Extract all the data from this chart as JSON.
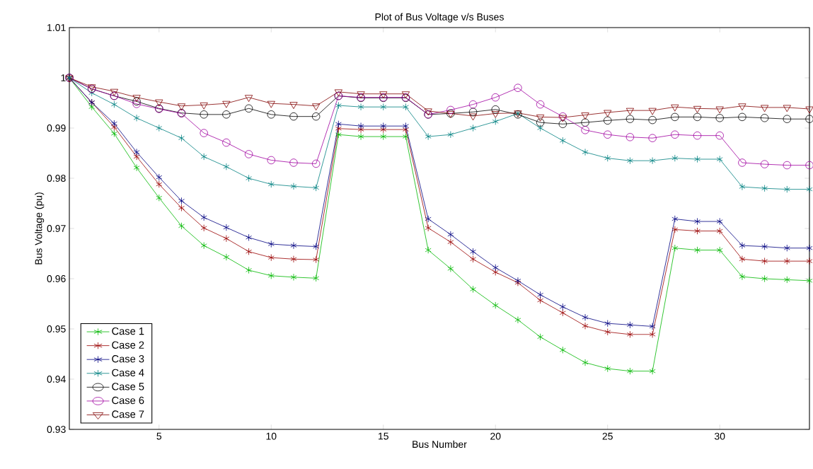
{
  "chart_data": {
    "type": "line",
    "title": "Plot of Bus Voltage v/s Buses",
    "xlabel": "Bus Number",
    "ylabel": "Bus Voltage (pu)",
    "x": [
      1,
      2,
      3,
      4,
      5,
      6,
      7,
      8,
      9,
      10,
      11,
      12,
      13,
      14,
      15,
      16,
      17,
      18,
      19,
      20,
      21,
      22,
      23,
      24,
      25,
      26,
      27,
      28,
      29,
      30,
      31,
      32,
      33,
      34
    ],
    "xlim": [
      1,
      34
    ],
    "xticks": [
      5,
      10,
      15,
      20,
      25,
      30
    ],
    "ylim": [
      0.93,
      1.01
    ],
    "yticks": [
      0.93,
      0.94,
      0.95,
      0.96,
      0.97,
      0.98,
      0.99,
      1,
      1.01
    ],
    "grid": false,
    "legend": "bottom left",
    "line_style": "solid",
    "series": [
      {
        "name": "Case 1",
        "color": "#00b800",
        "marker": "cross",
        "values": [
          1.0,
          0.9942,
          0.9889,
          0.9821,
          0.9761,
          0.9705,
          0.9666,
          0.9643,
          0.9617,
          0.9606,
          0.9603,
          0.9601,
          0.9887,
          0.9883,
          0.9883,
          0.9883,
          0.9657,
          0.962,
          0.9579,
          0.9547,
          0.9518,
          0.9484,
          0.9458,
          0.9433,
          0.9421,
          0.9416,
          0.9416,
          0.9661,
          0.9657,
          0.9657,
          0.9604,
          0.96,
          0.9598,
          0.9596
        ]
      },
      {
        "name": "Case 2",
        "color": "#990000",
        "marker": "cross",
        "values": [
          1.0,
          0.9951,
          0.9902,
          0.9843,
          0.9788,
          0.9741,
          0.9701,
          0.968,
          0.9654,
          0.9642,
          0.9639,
          0.9638,
          0.9899,
          0.9897,
          0.9897,
          0.9897,
          0.9701,
          0.9673,
          0.9639,
          0.9613,
          0.9592,
          0.9557,
          0.9532,
          0.9506,
          0.9494,
          0.9489,
          0.9489,
          0.9698,
          0.9695,
          0.9695,
          0.9639,
          0.9635,
          0.9635,
          0.9635
        ]
      },
      {
        "name": "Case 3",
        "color": "#000080",
        "marker": "cross",
        "values": [
          1.0,
          0.9951,
          0.9909,
          0.9852,
          0.9802,
          0.9755,
          0.9722,
          0.9702,
          0.9682,
          0.9669,
          0.9666,
          0.9664,
          0.9908,
          0.9904,
          0.9904,
          0.9904,
          0.9719,
          0.9688,
          0.9654,
          0.9622,
          0.9596,
          0.9568,
          0.9544,
          0.9523,
          0.9511,
          0.9508,
          0.9505,
          0.9719,
          0.9714,
          0.9714,
          0.9666,
          0.9664,
          0.9661,
          0.9661
        ]
      },
      {
        "name": "Case 4",
        "color": "#008080",
        "marker": "cross",
        "values": [
          1.0,
          0.997,
          0.9947,
          0.992,
          0.99,
          0.988,
          0.9843,
          0.9823,
          0.98,
          0.9788,
          0.9784,
          0.9781,
          0.9945,
          0.9942,
          0.9942,
          0.9942,
          0.9883,
          0.9887,
          0.99,
          0.9913,
          0.9929,
          0.99,
          0.9875,
          0.9852,
          0.984,
          0.9835,
          0.9835,
          0.984,
          0.9838,
          0.9838,
          0.9783,
          0.978,
          0.9778,
          0.9778
        ]
      },
      {
        "name": "Case 5",
        "color": "#000000",
        "marker": "circle",
        "values": [
          1.0,
          0.9978,
          0.9964,
          0.9953,
          0.9939,
          0.993,
          0.9927,
          0.9927,
          0.9939,
          0.9927,
          0.9923,
          0.9923,
          0.9964,
          0.996,
          0.996,
          0.996,
          0.9927,
          0.9929,
          0.9932,
          0.9937,
          0.9927,
          0.9911,
          0.9908,
          0.9911,
          0.9915,
          0.9918,
          0.9916,
          0.9922,
          0.9922,
          0.992,
          0.9922,
          0.992,
          0.9918,
          0.9918
        ]
      },
      {
        "name": "Case 6",
        "color": "#a000a0",
        "marker": "circle",
        "values": [
          1.0,
          0.9978,
          0.9964,
          0.9948,
          0.9938,
          0.9929,
          0.989,
          0.9871,
          0.9848,
          0.9836,
          0.9831,
          0.9829,
          0.9964,
          0.9961,
          0.9961,
          0.9961,
          0.9927,
          0.9936,
          0.9947,
          0.9961,
          0.998,
          0.9947,
          0.9923,
          0.9896,
          0.9887,
          0.9882,
          0.988,
          0.9887,
          0.9885,
          0.9885,
          0.9831,
          0.9828,
          0.9826,
          0.9826
        ]
      },
      {
        "name": "Case 7",
        "color": "#800000",
        "marker": "triangle",
        "values": [
          1.0,
          0.9982,
          0.9973,
          0.9961,
          0.9952,
          0.9944,
          0.9946,
          0.9949,
          0.9961,
          0.9949,
          0.9947,
          0.9944,
          0.9972,
          0.9968,
          0.9968,
          0.9968,
          0.9934,
          0.9929,
          0.9924,
          0.9929,
          0.993,
          0.9922,
          0.9921,
          0.9926,
          0.9931,
          0.9935,
          0.9935,
          0.9942,
          0.9939,
          0.9938,
          0.9944,
          0.9941,
          0.9941,
          0.9938
        ]
      }
    ]
  }
}
